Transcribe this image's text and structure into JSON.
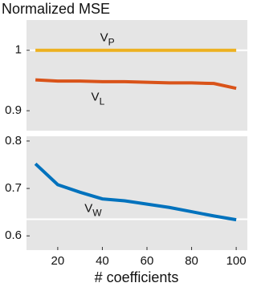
{
  "chart_data": [
    {
      "type": "line",
      "title": "Normalized MSE",
      "xlim": [
        6,
        105
      ],
      "ylim": [
        0.867,
        1.05
      ],
      "yticks": [
        0.9,
        1
      ],
      "reference_lines": [
        1
      ],
      "series": [
        {
          "name": "V",
          "subscript": "P",
          "color": "#edb120",
          "x": [
            10,
            20,
            30,
            40,
            50,
            60,
            70,
            80,
            90,
            100
          ],
          "values": [
            1,
            1,
            1,
            1,
            1,
            1,
            1,
            1,
            1,
            1
          ],
          "label_at": [
            39,
            1.02
          ]
        },
        {
          "name": "V",
          "subscript": "L",
          "color": "#d95319",
          "x": [
            10,
            20,
            30,
            40,
            50,
            60,
            70,
            80,
            90,
            100
          ],
          "values": [
            0.951,
            0.949,
            0.949,
            0.948,
            0.948,
            0.947,
            0.946,
            0.946,
            0.945,
            0.937
          ],
          "label_at": [
            35,
            0.922
          ]
        }
      ]
    },
    {
      "type": "line",
      "xlabel": "# coefficients",
      "xlim": [
        6,
        105
      ],
      "ylim": [
        0.57,
        0.81
      ],
      "yticks": [
        0.6,
        0.7,
        0.8
      ],
      "xticks": [
        20,
        40,
        60,
        80,
        100
      ],
      "reference_lines": [
        0.635
      ],
      "series": [
        {
          "name": "V",
          "subscript": "W",
          "color": "#0072bd",
          "x": [
            10,
            20,
            30,
            40,
            50,
            60,
            70,
            80,
            90,
            100
          ],
          "values": [
            0.752,
            0.708,
            0.692,
            0.678,
            0.674,
            0.667,
            0.66,
            0.651,
            0.642,
            0.634
          ],
          "label_at": [
            32,
            0.657
          ]
        }
      ]
    }
  ]
}
